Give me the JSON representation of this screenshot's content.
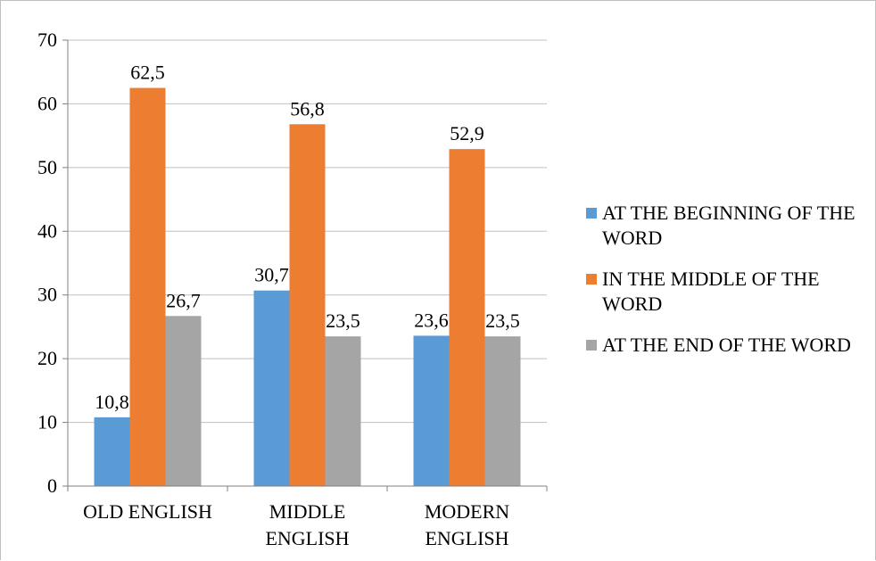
{
  "chart_data": {
    "type": "bar",
    "categories": [
      "OLD ENGLISH",
      "MIDDLE ENGLISH",
      "MODERN ENGLISH"
    ],
    "category_lines": [
      [
        "OLD ENGLISH"
      ],
      [
        "MIDDLE",
        "ENGLISH"
      ],
      [
        "MODERN",
        "ENGLISH"
      ]
    ],
    "series": [
      {
        "name": "AT THE BEGINNING OF THE WORD",
        "values": [
          10.8,
          30.7,
          23.6
        ],
        "labels": [
          "10,8",
          "30,7",
          "23,6"
        ],
        "color": "#5b9bd5"
      },
      {
        "name": "IN THE MIDDLE OF THE WORD",
        "values": [
          62.5,
          56.8,
          52.9
        ],
        "labels": [
          "62,5",
          "56,8",
          "52,9"
        ],
        "color": "#ed7d31"
      },
      {
        "name": "AT THE END OF THE WORD",
        "values": [
          26.7,
          23.5,
          23.5
        ],
        "labels": [
          "26,7",
          "23,5",
          "23,5"
        ],
        "color": "#a5a5a5"
      }
    ],
    "title": "",
    "xlabel": "",
    "ylabel": "",
    "ylim": [
      0,
      70
    ],
    "yticks": [
      "0",
      "10",
      "20",
      "30",
      "40",
      "50",
      "60",
      "70"
    ],
    "grid": true,
    "legend_position": "right"
  }
}
